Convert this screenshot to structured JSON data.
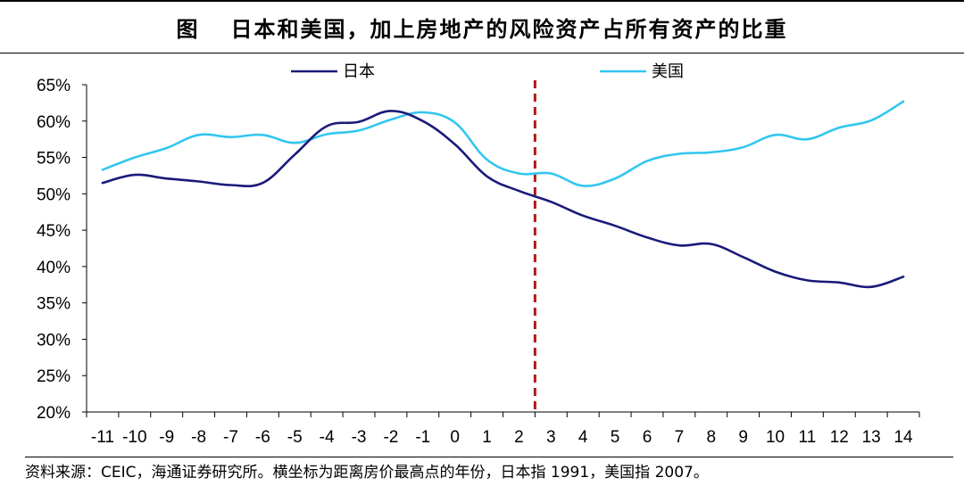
{
  "title": {
    "prefix": "图",
    "text": "日本和美国，加上房地产的风险资产占所有资产的比重"
  },
  "source_note": "资料来源：CEIC，海通证券研究所。横坐标为距离房价最高点的年份，日本指 1991，美国指 2007。",
  "chart_data": {
    "type": "line",
    "title": "日本和美国，加上房地产的风险资产占所有资产的比重",
    "xlabel": "",
    "ylabel": "",
    "x": [
      -11,
      -10,
      -9,
      -8,
      -7,
      -6,
      -5,
      -4,
      -3,
      -2,
      -1,
      0,
      1,
      2,
      3,
      4,
      5,
      6,
      7,
      8,
      9,
      10,
      11,
      12,
      13,
      14
    ],
    "x_tick_labels": [
      "-11",
      "-10",
      "-9",
      "-8",
      "-7",
      "-6",
      "-5",
      "-4",
      "-3",
      "-2",
      "-1",
      "0",
      "1",
      "2",
      "3",
      "4",
      "5",
      "6",
      "7",
      "8",
      "9",
      "10",
      "11",
      "12",
      "13",
      "14"
    ],
    "ylim": [
      20,
      65
    ],
    "y_ticks": [
      20,
      25,
      30,
      35,
      40,
      45,
      50,
      55,
      60,
      65
    ],
    "y_tick_labels": [
      "20%",
      "25%",
      "30%",
      "35%",
      "40%",
      "45%",
      "50%",
      "55%",
      "60%",
      "65%"
    ],
    "series": [
      {
        "name": "日本",
        "color": "#1a1a7a",
        "values": [
          51.5,
          52.6,
          52.1,
          51.7,
          51.2,
          51.5,
          55.4,
          59.3,
          59.9,
          61.4,
          60.0,
          56.8,
          52.4,
          50.4,
          48.9,
          47.0,
          45.6,
          44.0,
          42.9,
          43.1,
          41.3,
          39.3,
          38.1,
          37.8,
          37.2,
          38.6
        ]
      },
      {
        "name": "美国",
        "color": "#33c6ef",
        "values": [
          53.3,
          55.0,
          56.3,
          58.1,
          57.8,
          58.1,
          57.0,
          58.2,
          58.7,
          60.2,
          61.2,
          59.8,
          54.7,
          52.8,
          52.8,
          51.1,
          52.1,
          54.5,
          55.5,
          55.7,
          56.4,
          58.1,
          57.5,
          59.1,
          60.1,
          62.7
        ]
      }
    ],
    "reference_line": {
      "x": 2.5,
      "style": "dashed",
      "color": "#b01a1a"
    },
    "legend_position": "top"
  }
}
